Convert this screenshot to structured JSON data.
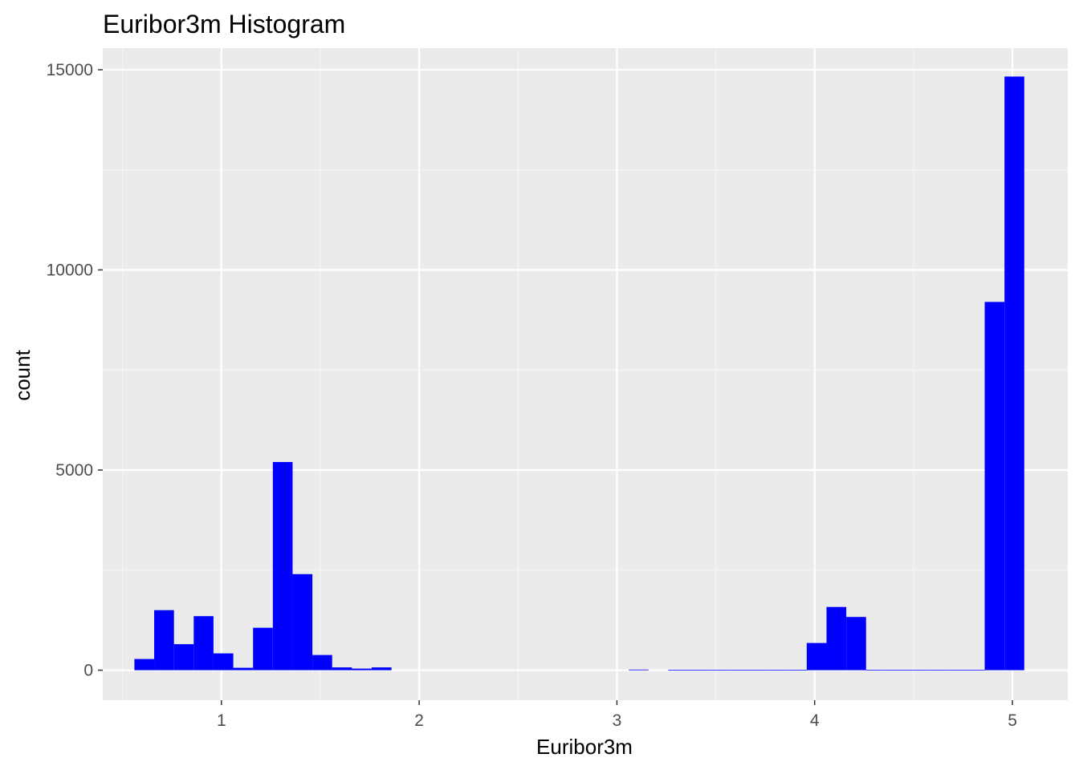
{
  "colors": {
    "panel_background": "#EBEBEB",
    "grid_major": "#FFFFFF",
    "grid_minor": "#F5F5F5",
    "bar_fill": "#0000FF",
    "tick_mark": "#333333"
  },
  "chart_data": {
    "type": "bar",
    "subtype": "histogram",
    "title": "Euribor3m Histogram",
    "xlabel": "Euribor3m",
    "ylabel": "count",
    "xlim": [
      0.4,
      5.28
    ],
    "ylim": [
      -750,
      15540
    ],
    "x_ticks": [
      1,
      2,
      3,
      4,
      5
    ],
    "y_ticks": [
      0,
      5000,
      10000,
      15000
    ],
    "grid": true,
    "bin_width": 0.1,
    "bins": [
      {
        "x0": 0.56,
        "x1": 0.66,
        "count": 280
      },
      {
        "x0": 0.66,
        "x1": 0.76,
        "count": 1500
      },
      {
        "x0": 0.76,
        "x1": 0.86,
        "count": 650
      },
      {
        "x0": 0.86,
        "x1": 0.96,
        "count": 1350
      },
      {
        "x0": 0.96,
        "x1": 1.06,
        "count": 420
      },
      {
        "x0": 1.06,
        "x1": 1.16,
        "count": 60
      },
      {
        "x0": 1.16,
        "x1": 1.26,
        "count": 1060
      },
      {
        "x0": 1.26,
        "x1": 1.36,
        "count": 5200
      },
      {
        "x0": 1.36,
        "x1": 1.46,
        "count": 2400
      },
      {
        "x0": 1.46,
        "x1": 1.56,
        "count": 380
      },
      {
        "x0": 1.56,
        "x1": 1.66,
        "count": 70
      },
      {
        "x0": 1.66,
        "x1": 1.76,
        "count": 40
      },
      {
        "x0": 1.76,
        "x1": 1.86,
        "count": 70
      },
      {
        "x0": 3.06,
        "x1": 3.16,
        "count": 15
      },
      {
        "x0": 3.26,
        "x1": 3.36,
        "count": 10
      },
      {
        "x0": 3.36,
        "x1": 3.46,
        "count": 10
      },
      {
        "x0": 3.46,
        "x1": 3.56,
        "count": 10
      },
      {
        "x0": 3.56,
        "x1": 3.66,
        "count": 10
      },
      {
        "x0": 3.66,
        "x1": 3.76,
        "count": 10
      },
      {
        "x0": 3.76,
        "x1": 3.86,
        "count": 10
      },
      {
        "x0": 3.86,
        "x1": 3.96,
        "count": 10
      },
      {
        "x0": 3.96,
        "x1": 4.06,
        "count": 680
      },
      {
        "x0": 4.06,
        "x1": 4.16,
        "count": 1580
      },
      {
        "x0": 4.16,
        "x1": 4.26,
        "count": 1330
      },
      {
        "x0": 4.26,
        "x1": 4.36,
        "count": 10
      },
      {
        "x0": 4.36,
        "x1": 4.46,
        "count": 10
      },
      {
        "x0": 4.46,
        "x1": 4.56,
        "count": 10
      },
      {
        "x0": 4.56,
        "x1": 4.66,
        "count": 10
      },
      {
        "x0": 4.66,
        "x1": 4.76,
        "count": 10
      },
      {
        "x0": 4.76,
        "x1": 4.86,
        "count": 10
      },
      {
        "x0": 4.86,
        "x1": 4.96,
        "count": 9200
      },
      {
        "x0": 4.96,
        "x1": 5.06,
        "count": 14830
      }
    ]
  }
}
